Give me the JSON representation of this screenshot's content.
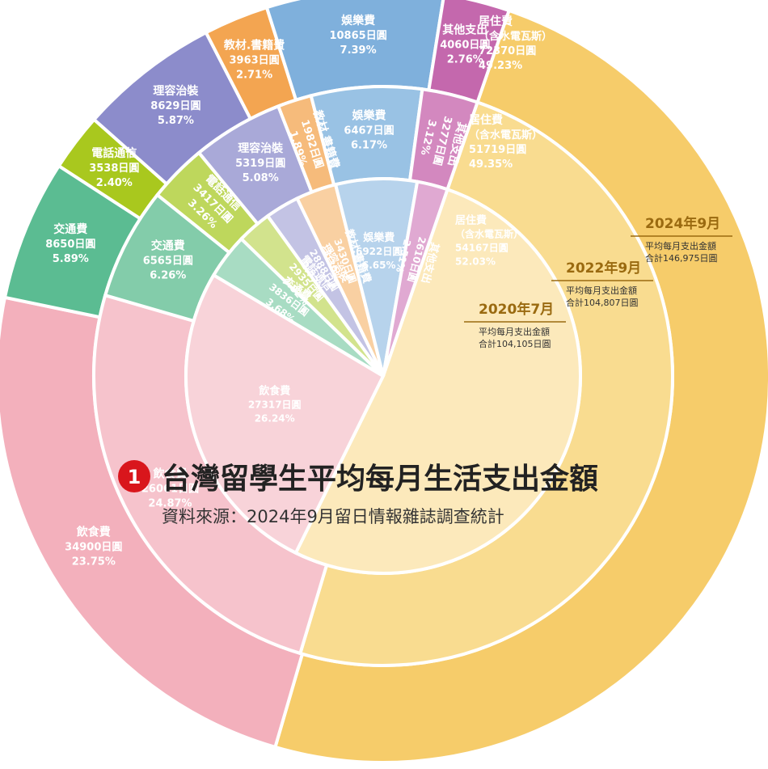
{
  "title": "台灣留學生平均每月生活支出金額",
  "title_badge": "1",
  "source": "資料來源：2024年9月留日情報雜誌調查統計",
  "chart_data": [
    {
      "type": "pie",
      "year_label": "2024年9月",
      "subtitle": "平均每月支出金額",
      "total_label": "合計146,975日圓",
      "slices": [
        {
          "key": "housing",
          "name": "居住費",
          "sub": "（含水電瓦斯）",
          "value_text": "72370日圓",
          "pct_text": "49.23%",
          "pct": 49.23,
          "color": "#f6cc6a"
        },
        {
          "key": "food",
          "name": "飲食費",
          "value_text": "34900日圓",
          "pct_text": "23.75%",
          "pct": 23.75,
          "color": "#f3b0bc"
        },
        {
          "key": "transport",
          "name": "交通費",
          "value_text": "8650日圓",
          "pct_text": "5.89%",
          "pct": 5.89,
          "color": "#5bbc92"
        },
        {
          "key": "phone",
          "name": "電話通信",
          "value_text": "3538日圓",
          "pct_text": "2.40%",
          "pct": 2.4,
          "color": "#a9c81e"
        },
        {
          "key": "grooming",
          "name": "理容治裝",
          "value_text": "8629日圓",
          "pct_text": "5.87%",
          "pct": 5.87,
          "color": "#8c8ccb"
        },
        {
          "key": "books",
          "name": "教材.書籍費",
          "value_text": "3963日圓",
          "pct_text": "2.71%",
          "pct": 2.71,
          "color": "#f3a551"
        },
        {
          "key": "leisure",
          "name": "娛樂費",
          "value_text": "10865日圓",
          "pct_text": "7.39%",
          "pct": 7.39,
          "color": "#7fb0dc"
        },
        {
          "key": "other",
          "name": "其他支出",
          "value_text": "4060日圓",
          "pct_text": "2.76%",
          "pct": 2.76,
          "color": "#c468ad"
        }
      ]
    },
    {
      "type": "pie",
      "year_label": "2022年9月",
      "subtitle": "平均每月支出金額",
      "total_label": "合計104,807日圓",
      "slices": [
        {
          "key": "housing",
          "name": "居住費",
          "sub": "（含水電瓦斯）",
          "value_text": "51719日圓",
          "pct_text": "49.35%",
          "pct": 49.35,
          "color": "#f9dc90"
        },
        {
          "key": "food",
          "name": "飲食費",
          "value_text": "26061日圓",
          "pct_text": "24.87%",
          "pct": 24.87,
          "color": "#f6c3cc"
        },
        {
          "key": "transport",
          "name": "交通費",
          "value_text": "6565日圓",
          "pct_text": "6.26%",
          "pct": 6.26,
          "color": "#83ccaa"
        },
        {
          "key": "phone",
          "name": "電話通信",
          "value_text": "3417日圓",
          "pct_text": "3.26%",
          "pct": 3.26,
          "color": "#bed75c"
        },
        {
          "key": "grooming",
          "name": "理容治裝",
          "value_text": "5319日圓",
          "pct_text": "5.08%",
          "pct": 5.08,
          "color": "#a9a9d8"
        },
        {
          "key": "books",
          "name": "教材.書籍費",
          "value_text": "1982日圓",
          "pct_text": "1.89%",
          "pct": 1.89,
          "color": "#f6bb7b"
        },
        {
          "key": "leisure",
          "name": "娛樂費",
          "value_text": "6467日圓",
          "pct_text": "6.17%",
          "pct": 6.17,
          "color": "#99c2e4"
        },
        {
          "key": "other",
          "name": "其他支出",
          "value_text": "3277日圓",
          "pct_text": "3.12%",
          "pct": 3.12,
          "color": "#d388bf"
        }
      ]
    },
    {
      "type": "pie",
      "year_label": "2020年7月",
      "subtitle": "平均每月支出金額",
      "total_label": "合計104,105日圓",
      "slices": [
        {
          "key": "housing",
          "name": "居住費",
          "sub": "（含水電瓦斯）",
          "value_text": "54167日圓",
          "pct_text": "52.03%",
          "pct": 52.03,
          "color": "#fce9bb"
        },
        {
          "key": "food",
          "name": "飲食費",
          "value_text": "27317日圓",
          "pct_text": "26.24%",
          "pct": 26.24,
          "color": "#f8d3d9"
        },
        {
          "key": "transport",
          "name": "交通費",
          "value_text": "3836日圓",
          "pct_text": "3.68%",
          "pct": 3.68,
          "color": "#a8dcc3"
        },
        {
          "key": "phone",
          "name": "電話通信",
          "value_text": "2935日圓",
          "pct_text": "2.82%",
          "pct": 2.82,
          "color": "#d2e38d"
        },
        {
          "key": "grooming",
          "name": "理容治裝",
          "value_text": "2888日圓",
          "pct_text": "2.77%",
          "pct": 2.77,
          "color": "#c3c3e4"
        },
        {
          "key": "books",
          "name": "教材.書籍費",
          "value_text": "3430日圓",
          "pct_text": "3.30%",
          "pct": 3.3,
          "color": "#f9d0a2"
        },
        {
          "key": "leisure",
          "name": "娛樂費",
          "value_text": "6922日圓",
          "pct_text": "6.65%",
          "pct": 6.65,
          "color": "#b7d3ec"
        },
        {
          "key": "other",
          "name": "其他支出",
          "value_text": "2610日圓",
          "pct_text": "2.51%",
          "pct": 2.51,
          "color": "#e0a9d2"
        }
      ]
    }
  ]
}
